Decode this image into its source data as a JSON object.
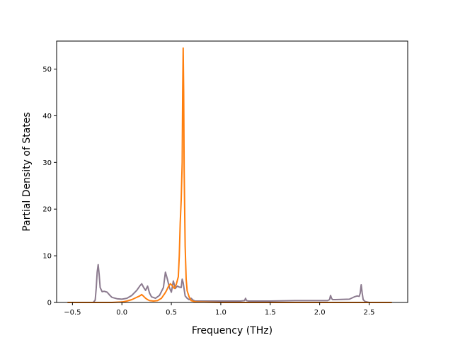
{
  "chart_data": {
    "type": "line",
    "title": "",
    "xlabel": "Frequency (THz)",
    "ylabel": "Partial Density of States",
    "xlim": [
      -0.66,
      2.89
    ],
    "ylim": [
      0,
      56
    ],
    "x_ticks": [
      -0.5,
      0.0,
      0.5,
      1.0,
      1.5,
      2.0,
      2.5
    ],
    "x_tick_labels": [
      "−0.5",
      "0.0",
      "0.5",
      "1.0",
      "1.5",
      "2.0",
      "2.5"
    ],
    "y_ticks": [
      0,
      10,
      20,
      30,
      40,
      50
    ],
    "y_tick_labels": [
      "0",
      "10",
      "20",
      "30",
      "40",
      "50"
    ],
    "grid": false,
    "legend": "none",
    "series": [
      {
        "color": "#8c7b8f",
        "x": [
          -0.55,
          -0.29,
          -0.27,
          -0.26,
          -0.25,
          -0.24,
          -0.23,
          -0.22,
          -0.2,
          -0.18,
          -0.15,
          -0.12,
          -0.1,
          -0.05,
          0.0,
          0.05,
          0.1,
          0.15,
          0.18,
          0.2,
          0.22,
          0.24,
          0.26,
          0.28,
          0.3,
          0.34,
          0.38,
          0.42,
          0.44,
          0.46,
          0.48,
          0.5,
          0.52,
          0.54,
          0.56,
          0.58,
          0.6,
          0.61,
          0.62,
          0.63,
          0.64,
          0.66,
          0.68,
          0.7,
          0.72,
          0.74,
          0.76,
          0.8,
          1.0,
          1.2,
          1.24,
          1.25,
          1.26,
          1.28,
          1.5,
          1.75,
          2.0,
          2.08,
          2.1,
          2.11,
          2.12,
          2.13,
          2.16,
          2.3,
          2.35,
          2.38,
          2.4,
          2.41,
          2.42,
          2.43,
          2.44,
          2.46,
          2.5,
          2.73
        ],
        "y": [
          0,
          0,
          0.5,
          3.0,
          6.5,
          8.1,
          6.0,
          3.2,
          2.3,
          2.4,
          2.2,
          1.5,
          1.1,
          0.8,
          0.7,
          0.9,
          1.5,
          2.6,
          3.5,
          4.0,
          3.2,
          2.6,
          3.5,
          2.0,
          1.2,
          0.9,
          1.5,
          3.2,
          6.5,
          5.0,
          3.2,
          2.2,
          4.6,
          3.0,
          3.5,
          3.3,
          3.2,
          5.0,
          4.2,
          2.8,
          1.4,
          0.9,
          0.6,
          0.9,
          0.5,
          0.3,
          0.3,
          0.3,
          0.3,
          0.3,
          0.4,
          0.9,
          0.4,
          0.3,
          0.3,
          0.4,
          0.4,
          0.4,
          0.6,
          1.5,
          0.9,
          0.6,
          0.6,
          0.7,
          1.2,
          1.4,
          1.3,
          2.0,
          3.8,
          2.0,
          0.6,
          0.2,
          0,
          0
        ]
      },
      {
        "color": "#ff7f0e",
        "x": [
          -0.55,
          -0.29,
          -0.1,
          0.0,
          0.05,
          0.1,
          0.14,
          0.18,
          0.2,
          0.22,
          0.24,
          0.26,
          0.28,
          0.32,
          0.36,
          0.4,
          0.43,
          0.45,
          0.47,
          0.49,
          0.51,
          0.53,
          0.55,
          0.57,
          0.58,
          0.59,
          0.6,
          0.61,
          0.615,
          0.62,
          0.625,
          0.63,
          0.64,
          0.65,
          0.66,
          0.68,
          0.7,
          0.75,
          1.0,
          1.5,
          2.0,
          2.4,
          2.45,
          2.5,
          2.73
        ],
        "y": [
          0,
          0,
          0,
          0.1,
          0.3,
          0.6,
          1.0,
          1.4,
          1.7,
          1.3,
          0.9,
          0.6,
          0.4,
          0.3,
          0.4,
          0.9,
          1.8,
          2.5,
          3.4,
          4.0,
          3.6,
          3.0,
          3.9,
          5.5,
          10.0,
          17.0,
          22.0,
          30.0,
          45.0,
          54.5,
          45.0,
          28.0,
          12.0,
          5.0,
          2.5,
          1.2,
          0.4,
          0.1,
          0,
          0,
          0,
          0,
          0,
          0,
          0
        ]
      }
    ]
  }
}
